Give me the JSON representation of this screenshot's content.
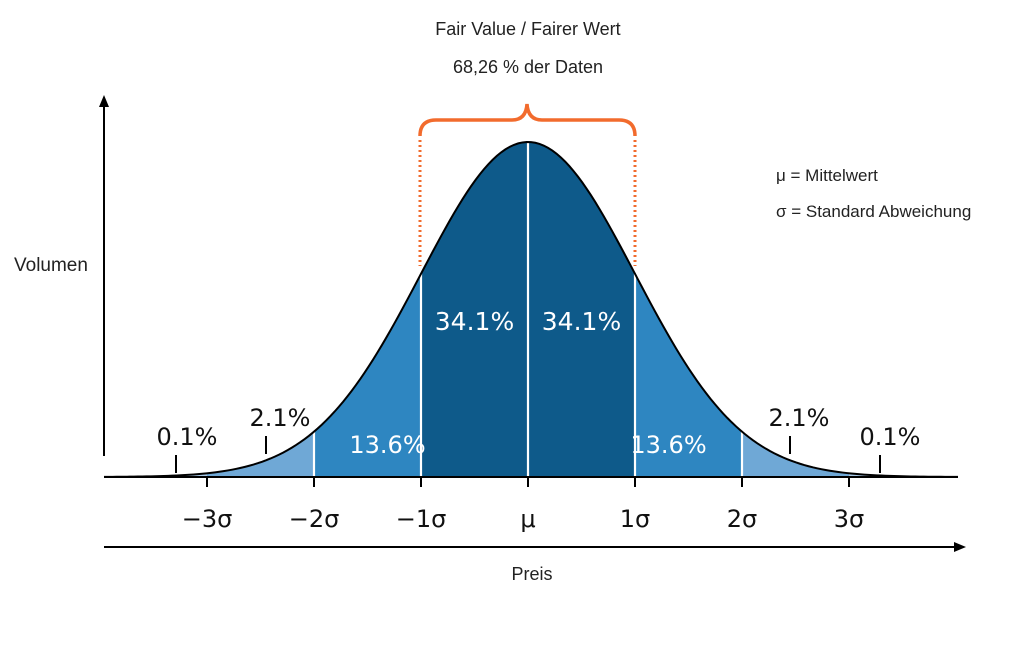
{
  "header": {
    "bracket_title": "Fair Value / Fairer Wert",
    "bracket_subtitle": "68,26 % der Daten"
  },
  "legend": {
    "mu": "μ = Mittelwert",
    "sigma": "σ = Standard Abweichung"
  },
  "axes": {
    "ylabel": "Volumen",
    "xlabel": "Preis"
  },
  "colors": {
    "band_1sigma": "#0e5a8a",
    "band_2sigma": "#2e86c1",
    "band_3sigma": "#6fa8d6",
    "band_tail": "#a7c8e6",
    "bracket": "#f26b2d",
    "curve": "#000000"
  },
  "chart_data": {
    "type": "area",
    "distribution": "normal",
    "mean": 0,
    "std": 1,
    "xlim": [
      -4,
      4
    ],
    "tick_labels": [
      "−3σ",
      "−2σ",
      "−1σ",
      "μ",
      "1σ",
      "2σ",
      "3σ"
    ],
    "tick_values": [
      -3,
      -2,
      -1,
      0,
      1,
      2,
      3
    ],
    "bands": [
      {
        "from": -1,
        "to": 0,
        "label": "34.1%"
      },
      {
        "from": 0,
        "to": 1,
        "label": "34.1%"
      },
      {
        "from": -2,
        "to": -1,
        "label": "13.6%"
      },
      {
        "from": 1,
        "to": 2,
        "label": "13.6%"
      },
      {
        "from": -3,
        "to": -2,
        "label": "2.1%"
      },
      {
        "from": 2,
        "to": 3,
        "label": "2.1%"
      },
      {
        "from": -4,
        "to": -3,
        "label": "0.1%"
      },
      {
        "from": 3,
        "to": 4,
        "label": "0.1%"
      }
    ],
    "highlight_range": [
      -1,
      1
    ]
  }
}
